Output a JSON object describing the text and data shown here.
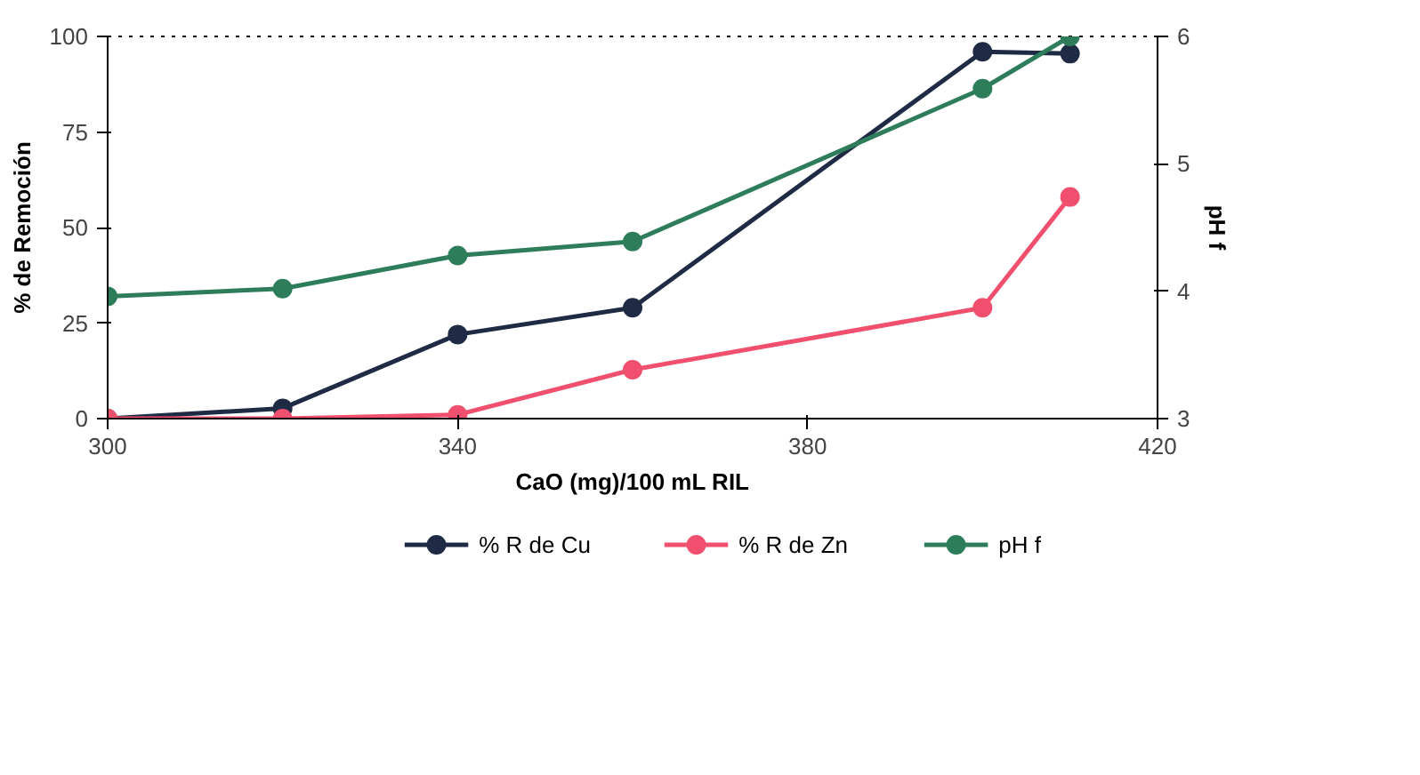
{
  "chart_data": {
    "type": "line",
    "xlabel": "CaO (mg)/100 mL RIL",
    "ylabel": "% de Remoción",
    "y2label": "pH f",
    "x": [
      300,
      320,
      340,
      360,
      400,
      410
    ],
    "series": [
      {
        "name": "% R de Cu",
        "color": "#1f2a44",
        "values": [
          0,
          2.7,
          22,
          29,
          96,
          95.5
        ]
      },
      {
        "name": "% R de Zn",
        "color": "#f0506e",
        "values": [
          0,
          0,
          1,
          12.8,
          29,
          58
        ]
      },
      {
        "name": "pH f",
        "color": "#2e7d5a",
        "axis": "y2",
        "values": [
          3.96,
          4.02,
          4.28,
          4.39,
          5.59,
          6.0
        ]
      }
    ],
    "xlim": [
      300,
      420
    ],
    "xticks": [
      300,
      340,
      380,
      420
    ],
    "ylim": [
      0,
      100
    ],
    "yticks": [
      0,
      25,
      50,
      75,
      100
    ],
    "y2lim": [
      3,
      6
    ],
    "y2ticks": [
      3,
      4,
      5,
      6
    ],
    "grid": false,
    "legend": "bottom",
    "marker": "circle",
    "line_style": "solid"
  }
}
